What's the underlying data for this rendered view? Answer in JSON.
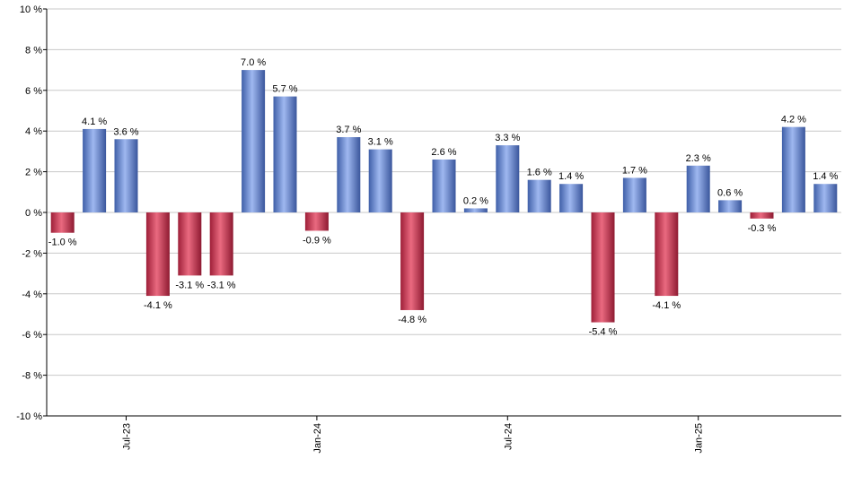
{
  "chart_data": {
    "type": "bar",
    "title": "",
    "xlabel": "",
    "ylabel": "",
    "ylim": [
      -10,
      10
    ],
    "y_ticks": [
      10,
      8,
      6,
      4,
      2,
      0,
      -2,
      -4,
      -6,
      -8,
      -10
    ],
    "y_tick_labels": [
      "10 %",
      "8 %",
      "6 %",
      "4 %",
      "2 %",
      "0 %",
      "-2 %",
      "-4 %",
      "-6 %",
      "-8 %",
      "-10 %"
    ],
    "grid": true,
    "legend": "none",
    "x_tick_labels": [
      {
        "label": "Jul-23",
        "index": 2
      },
      {
        "label": "Jan-24",
        "index": 8
      },
      {
        "label": "Jul-24",
        "index": 14
      },
      {
        "label": "Jan-25",
        "index": 20
      }
    ],
    "values": [
      -1.0,
      4.1,
      3.6,
      -4.1,
      -3.1,
      -3.1,
      7.0,
      5.7,
      -0.9,
      3.7,
      3.1,
      -4.8,
      2.6,
      0.2,
      3.3,
      1.6,
      1.4,
      -5.4,
      1.7,
      -4.1,
      2.3,
      0.6,
      -0.3,
      4.2,
      1.4
    ],
    "data_labels": [
      "-1.0 %",
      "4.1 %",
      "3.6 %",
      "-4.1 %",
      "-3.1 %",
      "-3.1 %",
      "7.0 %",
      "5.7 %",
      "-0.9 %",
      "3.7 %",
      "3.1 %",
      "-4.8 %",
      "2.6 %",
      "0.2 %",
      "3.3 %",
      "1.6 %",
      "1.4 %",
      "-5.4 %",
      "1.7 %",
      "-4.1 %",
      "2.3 %",
      "0.6 %",
      "-0.3 %",
      "4.2 %",
      "1.4 %"
    ],
    "colors": {
      "positive": "#6f8fd6",
      "negative": "#c8304a",
      "grid": "#c8c8c8",
      "axis": "#000000"
    }
  }
}
